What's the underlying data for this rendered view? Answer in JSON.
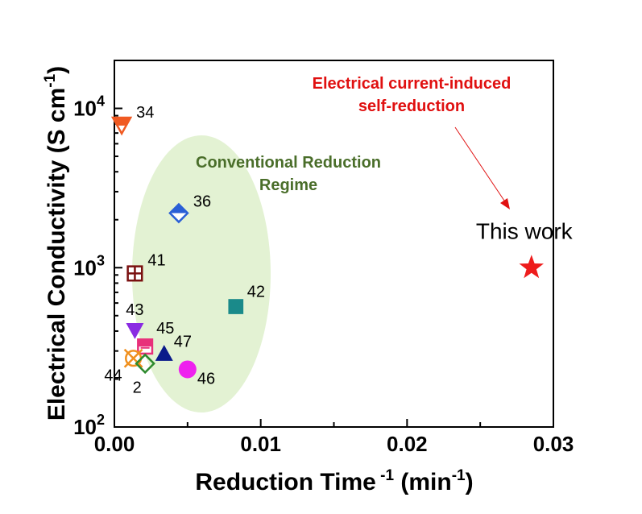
{
  "chart_data": {
    "type": "scatter",
    "xlabel": "Reduction Time -1 (min-1)",
    "ylabel": "Electrical Conductivity (S cm-1)",
    "xlim": [
      0.0,
      0.03
    ],
    "ylim": [
      100,
      20000
    ],
    "yscale": "log",
    "x_ticks": [
      "0.00",
      "0.01",
      "0.02",
      "0.03"
    ],
    "y_ticks": [
      {
        "value": 100,
        "base": "10",
        "exp": "2"
      },
      {
        "value": 1000,
        "base": "10",
        "exp": "3"
      },
      {
        "value": 10000,
        "base": "10",
        "exp": "4"
      }
    ],
    "points": [
      {
        "label": "34",
        "x": 0.0005,
        "y": 7800,
        "marker": "triangle-down-half",
        "color": "#f05a22"
      },
      {
        "label": "36",
        "x": 0.0044,
        "y": 2200,
        "marker": "diamond-half",
        "color": "#2a5fd6"
      },
      {
        "label": "41",
        "x": 0.0014,
        "y": 920,
        "marker": "square-cross",
        "color": "#7a1010"
      },
      {
        "label": "42",
        "x": 0.0083,
        "y": 570,
        "marker": "square",
        "color": "#1a8a8a"
      },
      {
        "label": "43",
        "x": 0.0014,
        "y": 400,
        "marker": "triangle-down",
        "color": "#8a2be2"
      },
      {
        "label": "45",
        "x": 0.0021,
        "y": 320,
        "marker": "square-half",
        "color": "#e8307a"
      },
      {
        "label": "47",
        "x": 0.0034,
        "y": 290,
        "marker": "triangle-up",
        "color": "#0a1a8a"
      },
      {
        "label": "44",
        "x": 0.0013,
        "y": 270,
        "marker": "circle-x",
        "color": "#f0901e"
      },
      {
        "label": "2",
        "x": 0.0021,
        "y": 250,
        "marker": "diamond",
        "color": "#2e8a2e"
      },
      {
        "label": "46",
        "x": 0.005,
        "y": 230,
        "marker": "circle",
        "color": "#ee22ee"
      },
      {
        "label": "This work",
        "x": 0.0285,
        "y": 1000,
        "marker": "star",
        "color": "#ee1c1c"
      }
    ],
    "annotations": {
      "region": [
        "Conventional Reduction",
        "Regime"
      ],
      "callout": [
        "Electrical current-induced",
        "self-reduction"
      ]
    },
    "colors": {
      "region_fill": "#e3f2d3",
      "region_text": "#4a6e2a",
      "callout_text": "#e01010"
    }
  }
}
